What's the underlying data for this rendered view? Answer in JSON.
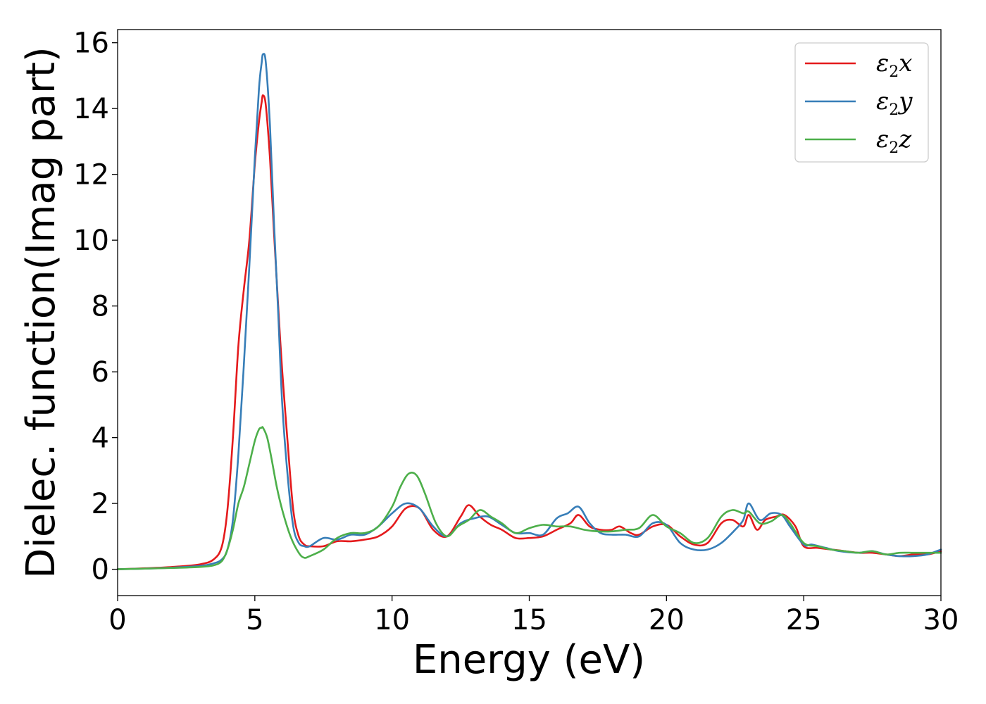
{
  "chart_data": {
    "type": "line",
    "xlabel": "Energy (eV)",
    "ylabel": "Dielec. function(Imag part)",
    "xlim": [
      0,
      30
    ],
    "ylim": [
      -0.8,
      16.4
    ],
    "xticks": [
      0,
      5,
      10,
      15,
      20,
      25,
      30
    ],
    "yticks": [
      0,
      2,
      4,
      6,
      8,
      10,
      12,
      14,
      16
    ],
    "grid": false,
    "legend_position": "top-right",
    "series": [
      {
        "name": "ε2x",
        "legend": {
          "symbol": "ε",
          "sub": "2",
          "var": "x"
        },
        "color": "#e41a1c",
        "x": [
          0,
          1,
          2,
          3,
          3.5,
          3.8,
          4.0,
          4.2,
          4.4,
          4.6,
          4.8,
          5.0,
          5.15,
          5.25,
          5.3,
          5.4,
          5.55,
          5.7,
          5.85,
          6.0,
          6.2,
          6.4,
          6.6,
          6.8,
          7.0,
          7.5,
          8.0,
          8.5,
          9.0,
          9.5,
          10.0,
          10.5,
          11.0,
          11.5,
          12.0,
          12.5,
          12.8,
          13.2,
          13.6,
          14.0,
          14.5,
          15.0,
          15.5,
          16.0,
          16.5,
          16.8,
          17.2,
          17.6,
          18.0,
          18.3,
          18.7,
          19.0,
          19.5,
          20.0,
          20.5,
          21.0,
          21.5,
          22.0,
          22.4,
          22.8,
          23.0,
          23.3,
          23.6,
          24.0,
          24.3,
          24.7,
          25.0,
          25.5,
          26.0,
          26.5,
          27.0,
          27.5,
          28.0,
          28.5,
          29.0,
          29.5,
          30.0
        ],
        "y": [
          0.0,
          0.03,
          0.07,
          0.15,
          0.3,
          0.7,
          1.8,
          4.0,
          6.8,
          8.5,
          10.0,
          12.3,
          13.6,
          14.2,
          14.4,
          14.1,
          12.5,
          10.2,
          8.0,
          6.0,
          3.8,
          1.8,
          1.0,
          0.75,
          0.7,
          0.7,
          0.85,
          0.85,
          0.9,
          1.0,
          1.3,
          1.85,
          1.85,
          1.2,
          1.0,
          1.6,
          1.95,
          1.6,
          1.35,
          1.2,
          0.95,
          0.95,
          1.0,
          1.2,
          1.4,
          1.65,
          1.3,
          1.2,
          1.2,
          1.3,
          1.1,
          1.05,
          1.3,
          1.35,
          1.0,
          0.75,
          0.8,
          1.4,
          1.5,
          1.3,
          1.65,
          1.2,
          1.5,
          1.6,
          1.65,
          1.3,
          0.7,
          0.65,
          0.6,
          0.55,
          0.5,
          0.5,
          0.45,
          0.4,
          0.45,
          0.45,
          0.55
        ]
      },
      {
        "name": "ε2y",
        "legend": {
          "symbol": "ε",
          "sub": "2",
          "var": "y"
        },
        "color": "#377eb8",
        "x": [
          0,
          1,
          2,
          3,
          3.5,
          3.8,
          4.0,
          4.2,
          4.4,
          4.6,
          4.8,
          5.0,
          5.15,
          5.25,
          5.3,
          5.4,
          5.55,
          5.7,
          5.85,
          6.0,
          6.2,
          6.4,
          6.6,
          6.8,
          7.0,
          7.5,
          8.0,
          8.5,
          9.0,
          9.5,
          10.0,
          10.5,
          11.0,
          11.5,
          12.0,
          12.5,
          13.0,
          13.5,
          14.0,
          14.5,
          15.0,
          15.5,
          16.0,
          16.4,
          16.8,
          17.2,
          17.6,
          18.0,
          18.5,
          19.0,
          19.5,
          20.0,
          20.5,
          21.0,
          21.5,
          22.0,
          22.5,
          22.8,
          23.0,
          23.4,
          23.8,
          24.2,
          24.5,
          25.0,
          25.3,
          25.8,
          26.3,
          27.0,
          27.5,
          28.0,
          28.5,
          29.0,
          29.5,
          30.0
        ],
        "y": [
          0.0,
          0.02,
          0.05,
          0.1,
          0.18,
          0.3,
          0.6,
          1.5,
          3.5,
          6.2,
          9.2,
          12.5,
          14.6,
          15.4,
          15.65,
          15.4,
          13.5,
          10.5,
          7.8,
          5.0,
          2.8,
          1.3,
          0.8,
          0.7,
          0.7,
          0.95,
          0.9,
          1.05,
          1.05,
          1.3,
          1.7,
          2.0,
          1.85,
          1.3,
          1.0,
          1.4,
          1.55,
          1.6,
          1.35,
          1.1,
          1.1,
          1.05,
          1.55,
          1.7,
          1.9,
          1.4,
          1.1,
          1.05,
          1.05,
          1.0,
          1.4,
          1.35,
          0.8,
          0.6,
          0.6,
          0.8,
          1.2,
          1.5,
          2.0,
          1.5,
          1.7,
          1.65,
          1.3,
          0.75,
          0.75,
          0.65,
          0.55,
          0.5,
          0.55,
          0.45,
          0.4,
          0.4,
          0.45,
          0.6
        ]
      },
      {
        "name": "ε2z",
        "legend": {
          "symbol": "ε",
          "sub": "2",
          "var": "z"
        },
        "color": "#4daf4a",
        "x": [
          0,
          1,
          2,
          3,
          3.5,
          3.8,
          4.0,
          4.2,
          4.4,
          4.6,
          4.8,
          5.0,
          5.15,
          5.25,
          5.3,
          5.45,
          5.6,
          5.8,
          6.0,
          6.3,
          6.6,
          6.8,
          7.0,
          7.5,
          8.0,
          8.5,
          9.0,
          9.5,
          10.0,
          10.3,
          10.6,
          10.9,
          11.2,
          11.6,
          12.0,
          12.4,
          12.8,
          13.2,
          13.6,
          14.0,
          14.5,
          15.0,
          15.5,
          16.0,
          16.5,
          17.0,
          17.5,
          18.0,
          18.5,
          19.0,
          19.5,
          20.0,
          20.5,
          21.0,
          21.5,
          22.0,
          22.4,
          22.8,
          23.0,
          23.4,
          23.8,
          24.2,
          24.5,
          25.0,
          25.5,
          26.0,
          26.5,
          27.0,
          27.5,
          28.0,
          28.5,
          29.0,
          29.5,
          30.0
        ],
        "y": [
          0.0,
          0.02,
          0.04,
          0.07,
          0.12,
          0.25,
          0.6,
          1.2,
          2.0,
          2.5,
          3.2,
          3.9,
          4.25,
          4.3,
          4.3,
          4.0,
          3.4,
          2.5,
          1.8,
          1.0,
          0.5,
          0.35,
          0.4,
          0.6,
          0.95,
          1.1,
          1.1,
          1.3,
          1.9,
          2.5,
          2.9,
          2.85,
          2.3,
          1.4,
          1.0,
          1.3,
          1.5,
          1.8,
          1.6,
          1.4,
          1.1,
          1.25,
          1.35,
          1.3,
          1.3,
          1.2,
          1.15,
          1.15,
          1.2,
          1.25,
          1.65,
          1.3,
          1.1,
          0.8,
          0.95,
          1.6,
          1.8,
          1.7,
          1.75,
          1.4,
          1.45,
          1.65,
          1.4,
          0.8,
          0.7,
          0.6,
          0.55,
          0.5,
          0.55,
          0.45,
          0.5,
          0.5,
          0.5,
          0.5
        ]
      }
    ]
  }
}
